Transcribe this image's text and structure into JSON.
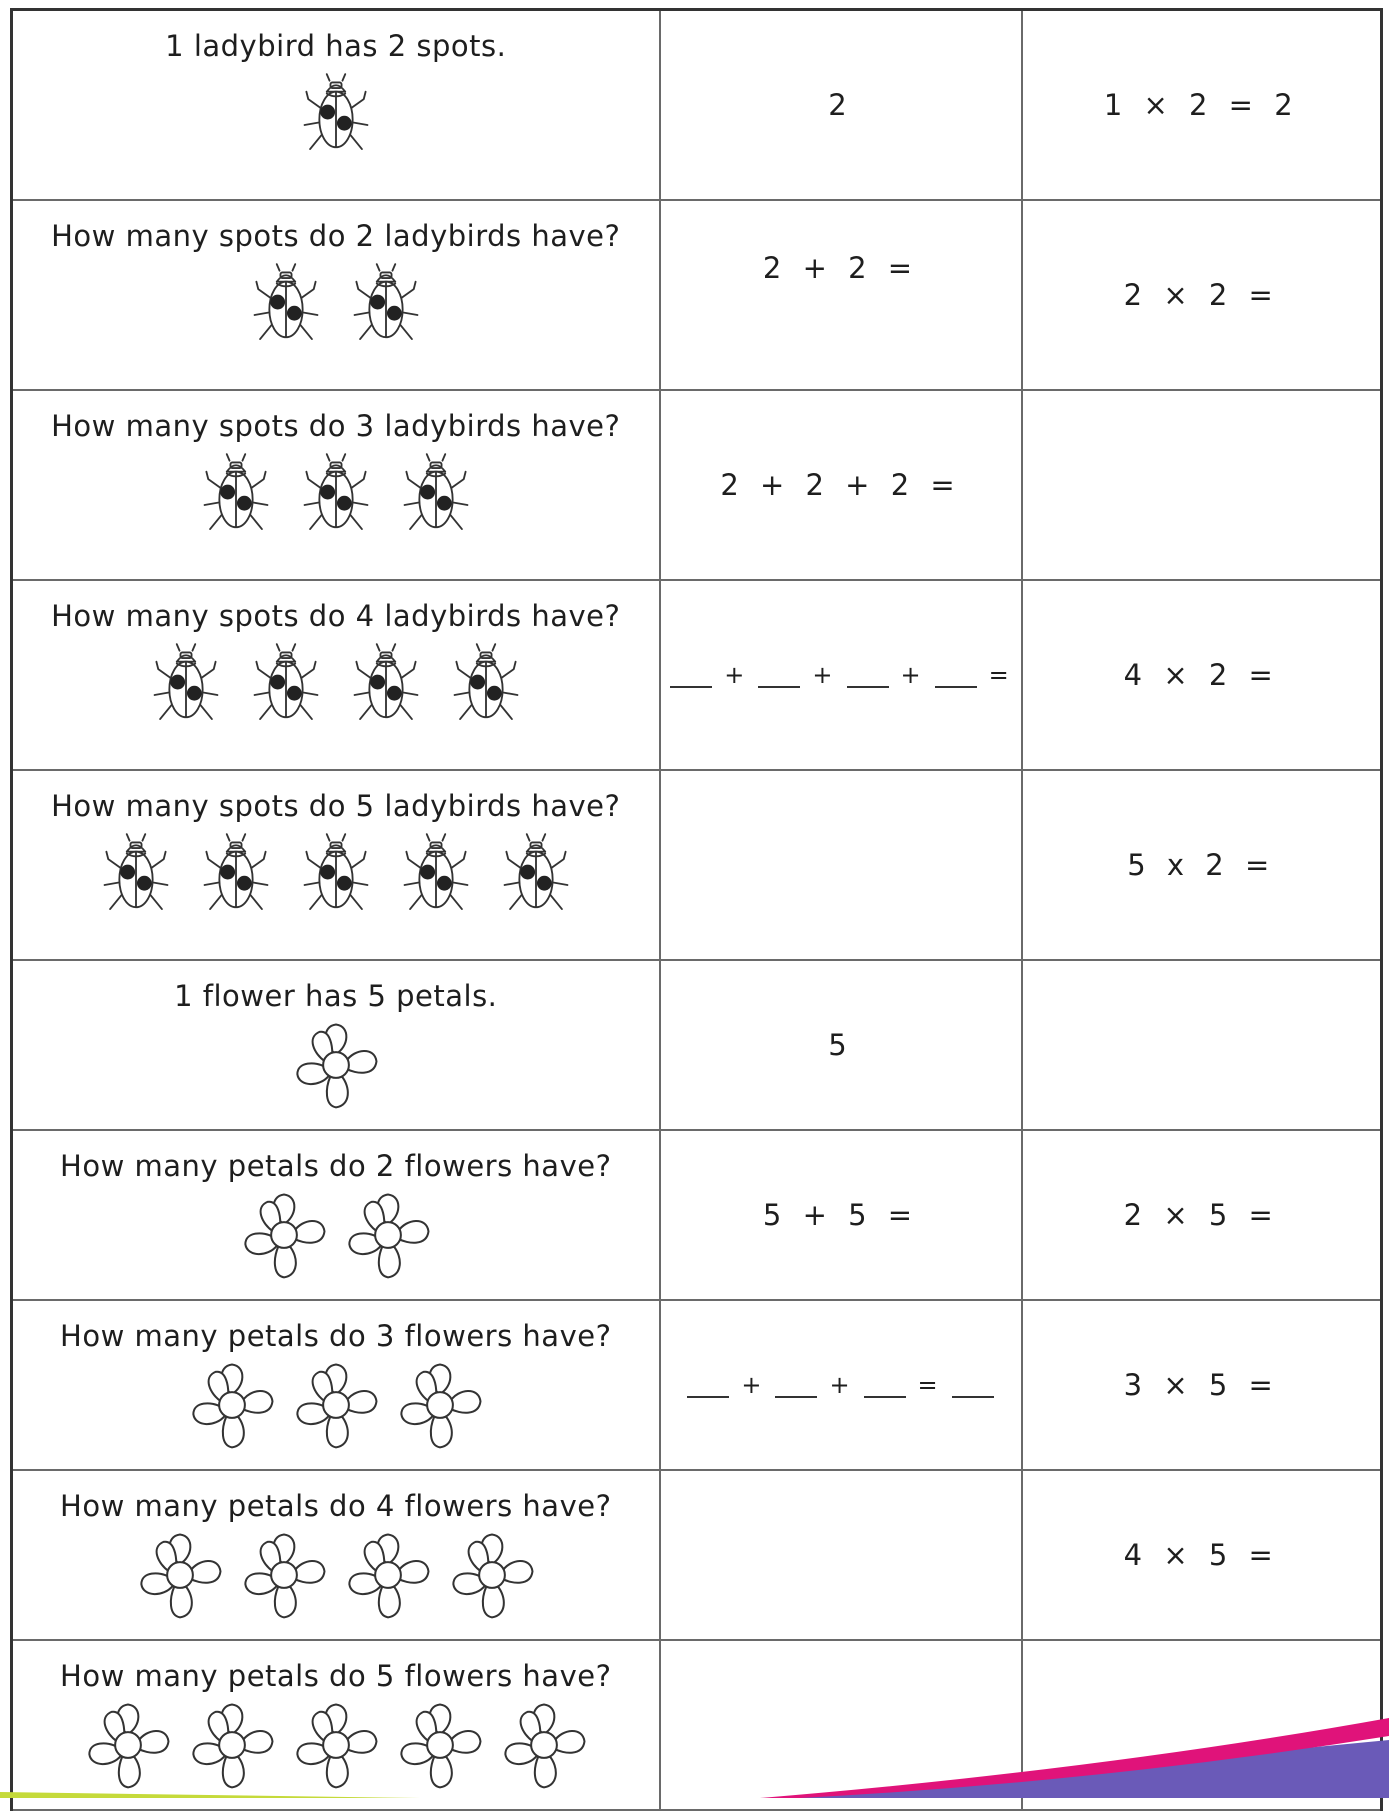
{
  "accent_colors": {
    "stripe_pink": "#e0137a",
    "stripe_purple": "#6a5ab8",
    "stripe_green": "#c5da3a"
  },
  "rows": [
    {
      "question": "1 ladybird has 2 spots.",
      "icon": "ladybird-icon",
      "count": 1,
      "addition": "2",
      "multiplication": "1 × 2 = 2"
    },
    {
      "question": "How many spots do 2 ladybirds have?",
      "icon": "ladybird-icon",
      "count": 2,
      "addition": "2 + 2 =",
      "multiplication": "2 × 2 ="
    },
    {
      "question": "How many spots do 3 ladybirds have?",
      "icon": "ladybird-icon",
      "count": 3,
      "addition": "2 + 2 + 2 =",
      "multiplication": ""
    },
    {
      "question": "How many spots do 4 ladybirds have?",
      "icon": "ladybird-icon",
      "count": 4,
      "addition_blanks": [
        "+",
        "+",
        "+",
        "="
      ],
      "multiplication": "4 × 2 ="
    },
    {
      "question": "How many spots do 5 ladybirds have?",
      "icon": "ladybird-icon",
      "count": 5,
      "addition": "",
      "multiplication": "5 x 2 ="
    },
    {
      "question": "1 flower has 5 petals.",
      "icon": "flower-icon",
      "count": 1,
      "addition": "5",
      "multiplication": ""
    },
    {
      "question": "How many petals do 2 flowers have?",
      "icon": "flower-icon",
      "count": 2,
      "addition": "5 + 5 =",
      "multiplication": "2 × 5 ="
    },
    {
      "question": "How many petals do 3 flowers have?",
      "icon": "flower-icon",
      "count": 3,
      "addition_blanks": [
        "+",
        "+",
        "="
      ],
      "multiplication": "3 × 5 ="
    },
    {
      "question": "How many petals do 4 flowers have?",
      "icon": "flower-icon",
      "count": 4,
      "addition": "",
      "multiplication": "4 × 5 ="
    },
    {
      "question": "How many petals do 5 flowers have?",
      "icon": "flower-icon",
      "count": 5,
      "addition": "",
      "multiplication": ""
    }
  ]
}
